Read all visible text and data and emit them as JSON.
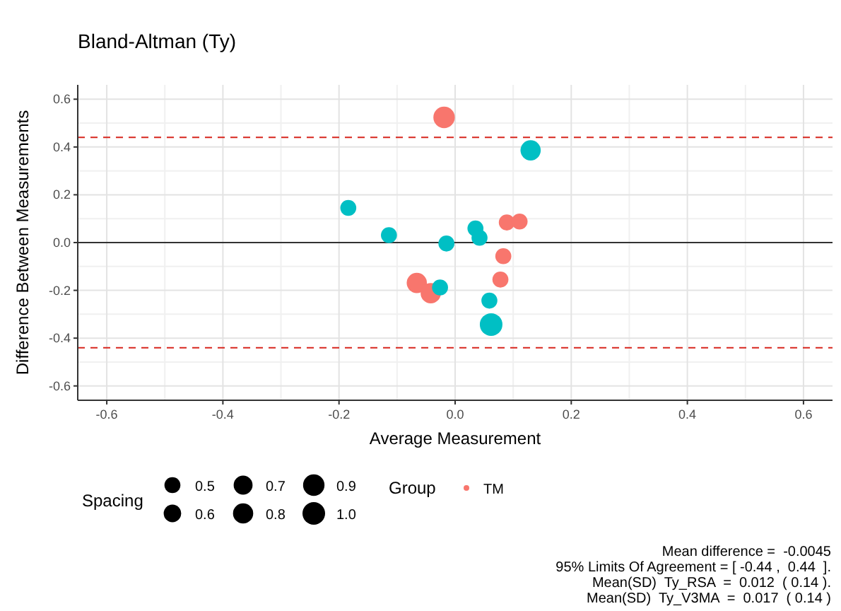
{
  "chart_data": {
    "type": "bubble",
    "title": "Bland-Altman (Ty)",
    "xlabel": "Average Measurement",
    "ylabel": "Difference Between Measurements",
    "legend_title": [
      "Spacing",
      "Group"
    ],
    "xlim": [
      -0.65,
      0.65
    ],
    "ylim": [
      -0.66,
      0.66
    ],
    "xticks": [
      -0.6,
      -0.4,
      -0.2,
      {
        "value": 0,
        "label": "0.0"
      },
      0.2,
      0.4,
      0.6
    ],
    "yticks": [
      -0.6,
      -0.4,
      -0.2,
      {
        "value": 0,
        "label": "0.0"
      },
      0.2,
      0.4,
      0.6
    ],
    "grid": true,
    "legend": "bottom",
    "size_legend": [
      0.5,
      0.6,
      0.7,
      0.8,
      0.9,
      {
        "value": 1,
        "label": "1.0"
      }
    ],
    "series": [
      {
        "name": "TM",
        "color": "#f8766d",
        "x": [
          -0.019,
          0.089,
          0.111,
          0.083,
          0.078,
          -0.066,
          -0.042
        ],
        "values": [
          0.524,
          0.084,
          0.088,
          -0.057,
          -0.155,
          -0.169,
          -0.212
        ],
        "sizes": [
          0.9,
          0.5,
          0.5,
          0.5,
          0.5,
          0.8,
          0.8
        ]
      },
      {
        "color": "#00bfc4",
        "x": [
          0.13,
          -0.184,
          -0.114,
          0.035,
          0.042,
          -0.015,
          -0.026,
          0.059,
          0.062
        ],
        "values": [
          0.386,
          0.145,
          0.031,
          0.059,
          0.02,
          -0.004,
          -0.188,
          -0.243,
          -0.343
        ],
        "sizes": [
          0.8,
          0.5,
          0.5,
          0.5,
          0.5,
          0.5,
          0.5,
          0.5,
          1.0
        ]
      }
    ],
    "ref_lines": [
      {
        "axis": "y",
        "value": 0.44,
        "color": "#d7261e",
        "line_style": "dashed"
      },
      {
        "axis": "y",
        "value": -0.44,
        "color": "#d7261e",
        "line_style": "dashed"
      },
      {
        "axis": "y",
        "value": 0,
        "color": "#333333",
        "line_style": "solid"
      }
    ],
    "annotations": [
      "Mean difference =  -0.0045",
      "95% Limits Of Agreement = [ -0.44 ,  0.44  ].",
      "Mean(SD)  Ty_RSA  =  0.012  ( 0.14 ).",
      "Mean(SD)  Ty_V3MA  =  0.017  ( 0.14 )"
    ]
  }
}
